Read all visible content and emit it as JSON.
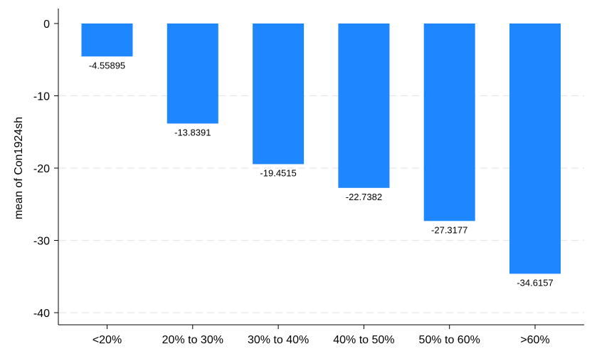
{
  "chart_data": {
    "type": "bar",
    "categories": [
      "<20%",
      "20% to 30%",
      "30% to 40%",
      "40% to 50%",
      "50% to 60%",
      ">60%"
    ],
    "values": [
      -4.55895,
      -13.8391,
      -19.4515,
      -22.7382,
      -27.3177,
      -34.6157
    ],
    "data_labels": [
      "-4.55895",
      "-13.8391",
      "-19.4515",
      "-22.7382",
      "-27.3177",
      "-34.6157"
    ],
    "title": "",
    "xlabel": "",
    "ylabel": "mean of Con1924sh",
    "ylim": [
      -40,
      0
    ],
    "yticks": [
      0,
      -10,
      -20,
      -30,
      -40
    ],
    "ytick_labels": [
      "0",
      "-10",
      "-20",
      "-30",
      "-40"
    ],
    "grid": true,
    "legend": "none",
    "bar_color": "#1e87ff",
    "grid_color": "#e4e8ee"
  }
}
